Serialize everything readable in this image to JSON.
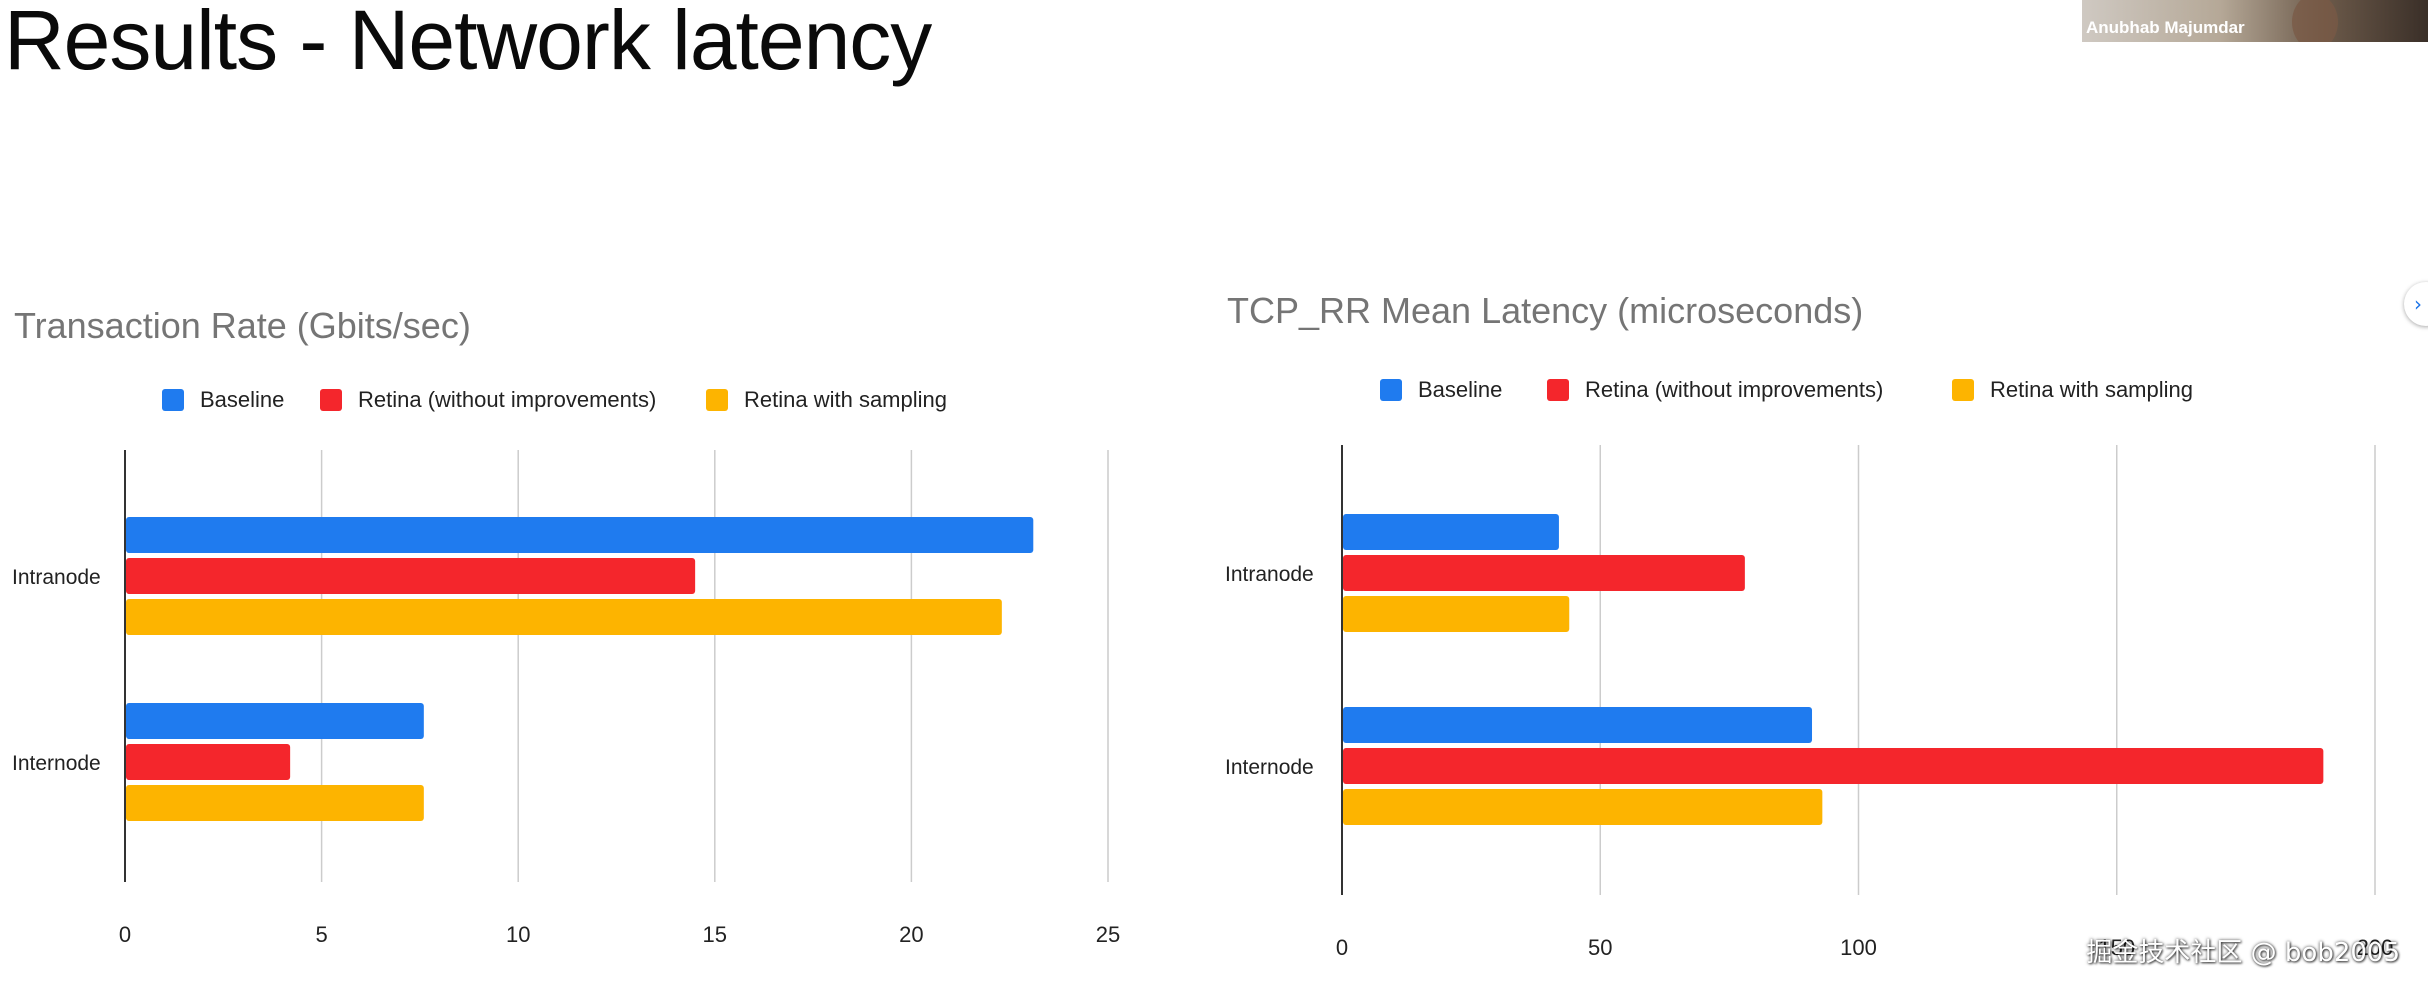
{
  "slide": {
    "title": "Results - Network latency"
  },
  "video": {
    "presenter_name": "Anubhab Majumdar"
  },
  "watermark": {
    "text": "掘金技术社区 @ bob2005"
  },
  "colors": {
    "baseline": "#1f7bef",
    "retina": "#f4262c",
    "sampling": "#fdb400",
    "grid": "#cccccc",
    "axis": "#333333",
    "title": "#757575"
  },
  "chart_data": [
    {
      "type": "bar",
      "orientation": "horizontal",
      "title": "Transaction Rate (Gbits/sec)",
      "xlabel": "",
      "ylabel": "",
      "categories": [
        "Intranode",
        "Internode"
      ],
      "series": [
        {
          "name": "Baseline",
          "values": [
            23.1,
            7.6
          ]
        },
        {
          "name": "Retina (without improvements)",
          "values": [
            14.5,
            4.2
          ]
        },
        {
          "name": "Retina with sampling",
          "values": [
            22.3,
            7.6
          ]
        }
      ],
      "xlim": [
        0,
        25
      ],
      "ticks": [
        "0",
        "5",
        "10",
        "15",
        "20",
        "25"
      ],
      "grid": true,
      "legend": "top"
    },
    {
      "type": "bar",
      "orientation": "horizontal",
      "title": "TCP_RR Mean Latency (microseconds)",
      "xlabel": "",
      "ylabel": "",
      "categories": [
        "Intranode",
        "Internode"
      ],
      "series": [
        {
          "name": "Baseline",
          "values": [
            42,
            91
          ]
        },
        {
          "name": "Retina (without improvements)",
          "values": [
            78,
            190
          ]
        },
        {
          "name": "Retina with sampling",
          "values": [
            44,
            93
          ]
        }
      ],
      "xlim": [
        0,
        200
      ],
      "ticks": [
        "0",
        "50",
        "100",
        "150",
        "200"
      ],
      "grid": true,
      "legend": "top"
    }
  ]
}
